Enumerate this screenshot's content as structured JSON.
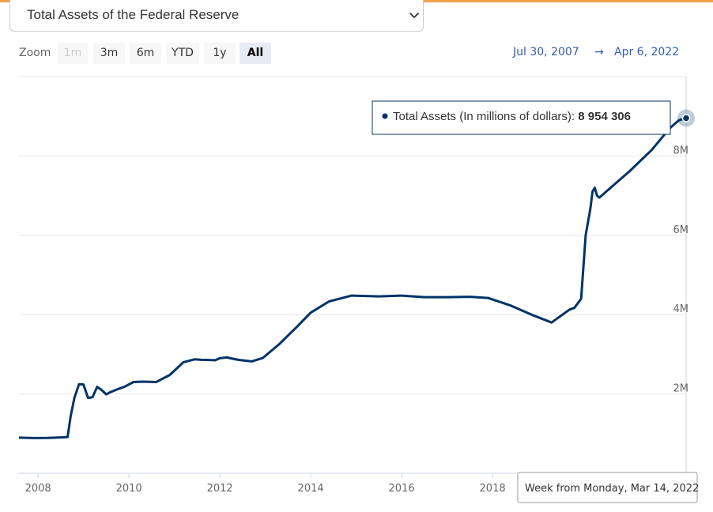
{
  "colors": {
    "accent": "#f0a04b",
    "series": "#003366",
    "range_text": "#335cad"
  },
  "selector": {
    "title": "Total Assets of the Federal Reserve",
    "icon": "chevron-down-icon"
  },
  "zoom": {
    "label": "Zoom",
    "buttons": [
      {
        "label": "1m",
        "state": "disabled"
      },
      {
        "label": "3m",
        "state": "normal"
      },
      {
        "label": "6m",
        "state": "normal"
      },
      {
        "label": "YTD",
        "state": "normal"
      },
      {
        "label": "1y",
        "state": "normal"
      },
      {
        "label": "All",
        "state": "active"
      }
    ]
  },
  "range": {
    "from": "Jul 30, 2007",
    "arrow": "→",
    "to": "Apr 6, 2022"
  },
  "chart_data": {
    "type": "line",
    "title": "Total Assets of the Federal Reserve",
    "series": [
      {
        "name": "Total Assets (In millions of dollars)",
        "x": [
          2007.58,
          2007.9,
          2008.2,
          2008.5,
          2008.65,
          2008.72,
          2008.8,
          2008.9,
          2009.0,
          2009.1,
          2009.2,
          2009.3,
          2009.4,
          2009.5,
          2009.6,
          2009.75,
          2009.9,
          2010.1,
          2010.3,
          2010.6,
          2010.9,
          2011.2,
          2011.45,
          2011.6,
          2011.9,
          2012.0,
          2012.15,
          2012.4,
          2012.7,
          2012.95,
          2013.3,
          2013.7,
          2014.0,
          2014.4,
          2014.9,
          2015.5,
          2016.0,
          2016.5,
          2017.0,
          2017.5,
          2017.9,
          2018.4,
          2018.9,
          2019.3,
          2019.6,
          2019.7,
          2019.8,
          2019.95,
          2020.05,
          2020.15,
          2020.2,
          2020.25,
          2020.3,
          2020.35,
          2020.45,
          2020.7,
          2021.0,
          2021.5,
          2021.9,
          2022.1,
          2022.26
        ],
        "y": [
          899,
          888,
          891,
          905,
          915,
          1450,
          1900,
          2245,
          2240,
          1900,
          1920,
          2180,
          2100,
          1990,
          2050,
          2120,
          2180,
          2300,
          2310,
          2300,
          2480,
          2800,
          2875,
          2860,
          2850,
          2900,
          2920,
          2860,
          2820,
          2910,
          3250,
          3700,
          4050,
          4330,
          4480,
          4460,
          4480,
          4440,
          4440,
          4450,
          4420,
          4230,
          3980,
          3800,
          4050,
          4130,
          4170,
          4400,
          6000,
          6650,
          7100,
          7200,
          7000,
          6950,
          7050,
          7300,
          7600,
          8150,
          8700,
          8900,
          8954
        ]
      }
    ],
    "xticks": [
      "2008",
      "2010",
      "2012",
      "2014",
      "2016",
      "2018"
    ],
    "xtick_values": [
      2008,
      2010,
      2012,
      2014,
      2016,
      2018
    ],
    "yticks": [
      "2M",
      "4M",
      "6M",
      "8M"
    ],
    "ytick_values": [
      2000,
      4000,
      6000,
      8000
    ],
    "xlim": [
      2007.58,
      2022.26
    ],
    "ylim": [
      0,
      10000
    ],
    "yunit": "millions of dollars",
    "tooltip": {
      "series_label": "Total Assets (In millions of dollars)",
      "value": "8 954 306"
    },
    "crosshair_label": "Week from Monday, Mar 14, 2022"
  }
}
